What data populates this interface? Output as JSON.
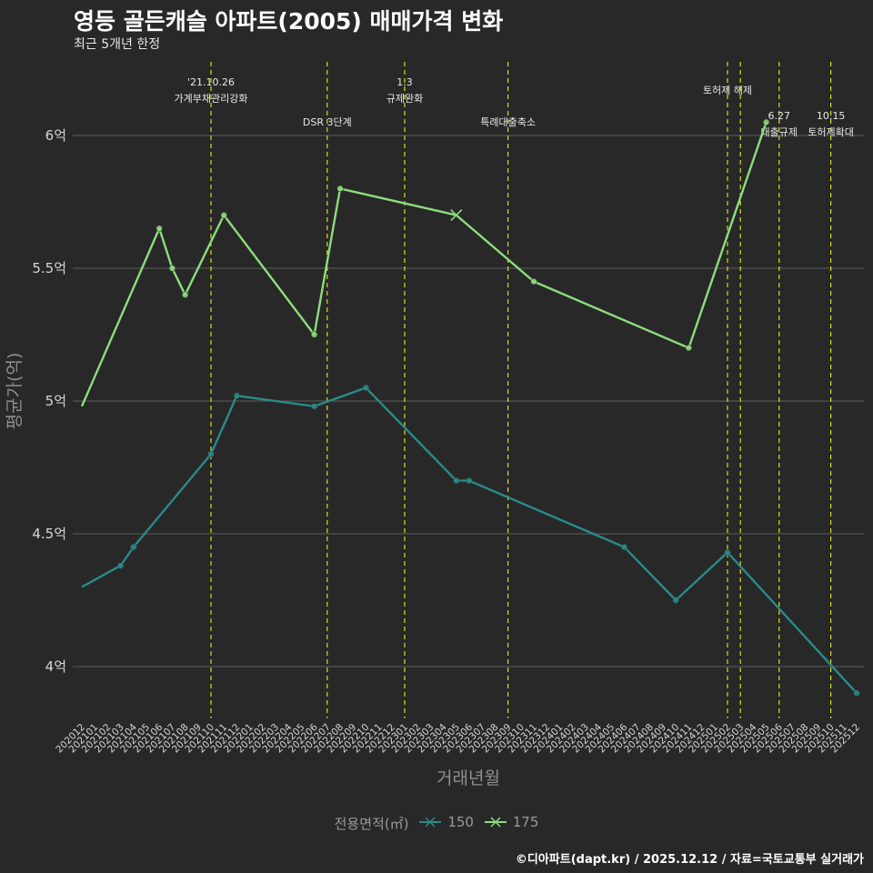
{
  "header": {
    "title": "영등 골든캐슬 아파트(2005) 매매가격 변화",
    "subtitle": "최근 5개년 한정"
  },
  "caption": "©디아파트(dapt.kr) / 2025.12.12 / 자료=국토교통부 실거래가",
  "legend": {
    "title": "전용면적(㎡)",
    "items": [
      {
        "label": "150",
        "color": "#2a8a8a"
      },
      {
        "label": "175",
        "color": "#8ddc7c"
      }
    ]
  },
  "chart_data": {
    "type": "line",
    "xlabel": "거래년월",
    "ylabel": "평균가(억)",
    "ylim": [
      3.8,
      6.3
    ],
    "yticks": [
      {
        "value": 4,
        "label": "4억"
      },
      {
        "value": 4.5,
        "label": "4.5억"
      },
      {
        "value": 5,
        "label": "5억"
      },
      {
        "value": 5.5,
        "label": "5.5억"
      },
      {
        "value": 6,
        "label": "6억"
      }
    ],
    "categories": [
      "202012",
      "202101",
      "202102",
      "202103",
      "202104",
      "202105",
      "202106",
      "202107",
      "202108",
      "202109",
      "202110",
      "202111",
      "202112",
      "202201",
      "202202",
      "202203",
      "202204",
      "202205",
      "202206",
      "202207",
      "202208",
      "202209",
      "202210",
      "202211",
      "202212",
      "202301",
      "202302",
      "202303",
      "202304",
      "202305",
      "202306",
      "202307",
      "202308",
      "202309",
      "202310",
      "202311",
      "202312",
      "202401",
      "202402",
      "202403",
      "202404",
      "202405",
      "202406",
      "202407",
      "202408",
      "202409",
      "202410",
      "202411",
      "202412",
      "202501",
      "202502",
      "202503",
      "202504",
      "202505",
      "202506",
      "202507",
      "202508",
      "202509",
      "202510",
      "202511",
      "202512"
    ],
    "series": [
      {
        "name": "150",
        "color": "#2a8a8a",
        "points": [
          {
            "x": "202012",
            "y": 4.3,
            "marker": "none"
          },
          {
            "x": "202103",
            "y": 4.38,
            "marker": "dot"
          },
          {
            "x": "202104",
            "y": 4.45,
            "marker": "dot"
          },
          {
            "x": "202110",
            "y": 4.8,
            "marker": "dot"
          },
          {
            "x": "202112",
            "y": 5.02,
            "marker": "dot"
          },
          {
            "x": "202206",
            "y": 4.98,
            "marker": "dot"
          },
          {
            "x": "202210",
            "y": 5.05,
            "marker": "dot"
          },
          {
            "x": "202305",
            "y": 4.7,
            "marker": "dot"
          },
          {
            "x": "202306",
            "y": 4.7,
            "marker": "dot"
          },
          {
            "x": "202406",
            "y": 4.45,
            "marker": "dot"
          },
          {
            "x": "202410",
            "y": 4.25,
            "marker": "dot"
          },
          {
            "x": "202502",
            "y": 4.43,
            "marker": "dot"
          },
          {
            "x": "202512",
            "y": 3.9,
            "marker": "dot"
          }
        ]
      },
      {
        "name": "175",
        "color": "#8ddc7c",
        "points": [
          {
            "x": "202012",
            "y": 4.98,
            "marker": "none"
          },
          {
            "x": "202106",
            "y": 5.65,
            "marker": "dot"
          },
          {
            "x": "202107",
            "y": 5.5,
            "marker": "dot"
          },
          {
            "x": "202108",
            "y": 5.4,
            "marker": "dot"
          },
          {
            "x": "202111",
            "y": 5.7,
            "marker": "dot"
          },
          {
            "x": "202206",
            "y": 5.25,
            "marker": "dot"
          },
          {
            "x": "202208",
            "y": 5.8,
            "marker": "dot"
          },
          {
            "x": "202305",
            "y": 5.7,
            "marker": "cross"
          },
          {
            "x": "202311",
            "y": 5.45,
            "marker": "dot"
          },
          {
            "x": "202411",
            "y": 5.2,
            "marker": "dot"
          },
          {
            "x": "202505",
            "y": 6.05,
            "marker": "dot"
          }
        ]
      }
    ],
    "events": [
      {
        "x": "202110",
        "lines": [
          "'21.10.26",
          "가계부채관리강화"
        ],
        "level": 0
      },
      {
        "x": "202207",
        "lines": [
          "DSR 3단계"
        ],
        "level": 2
      },
      {
        "x": "202301",
        "lines": [
          "1.3",
          "규제완화"
        ],
        "level": 0
      },
      {
        "x": "202309",
        "lines": [
          "특례대출축소"
        ],
        "level": 2
      },
      {
        "x": "202502",
        "lines": [
          "토허제 해제"
        ],
        "level": 1
      },
      {
        "x": "202503",
        "lines": [],
        "level": 1
      },
      {
        "x": "202506",
        "lines": [
          "6.27",
          "대출규제"
        ],
        "level": 3
      },
      {
        "x": "202510",
        "lines": [
          "10.15",
          "토허제확대"
        ],
        "level": 3
      }
    ]
  }
}
